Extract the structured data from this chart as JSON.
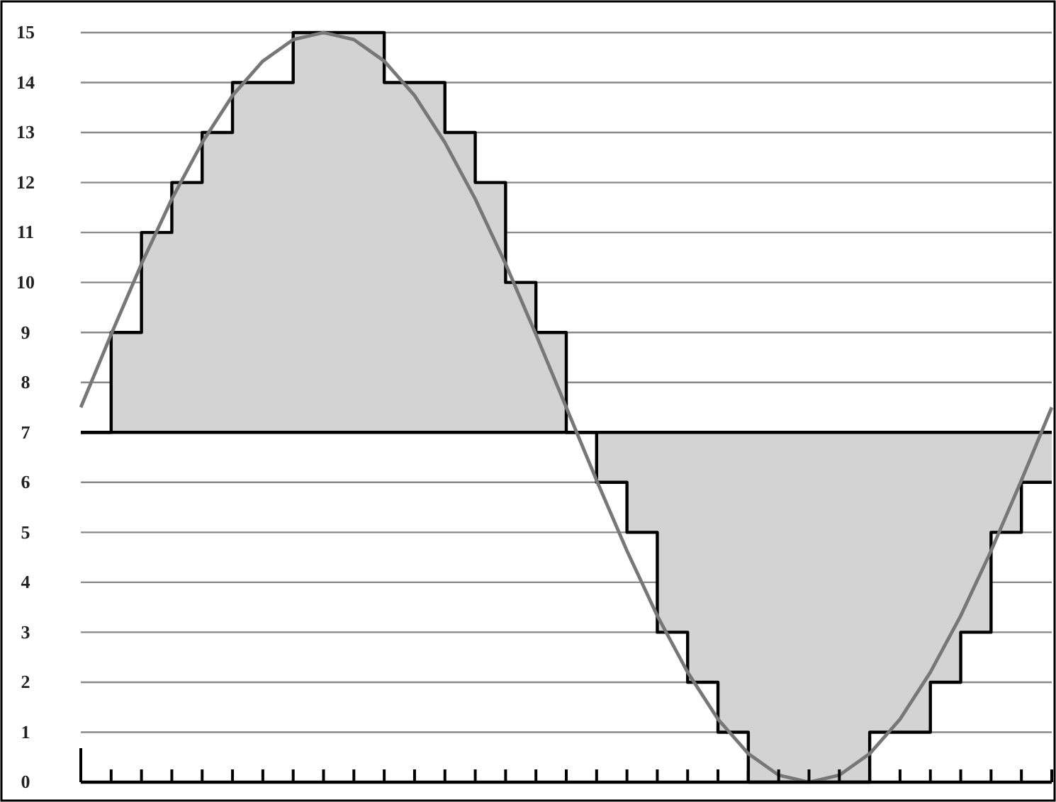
{
  "chart_data": {
    "type": "step",
    "categories": [
      null,
      null,
      null,
      null,
      null,
      null,
      null,
      null,
      null,
      null,
      null,
      null,
      null,
      null,
      null,
      null,
      null,
      null,
      null,
      null,
      null,
      null,
      null,
      null,
      null,
      null,
      null,
      null,
      null,
      null,
      null,
      null,
      null
    ],
    "series": [
      {
        "color": "#000000",
        "values": [
          7,
          9,
          11,
          12,
          13,
          14,
          14,
          15,
          15,
          15,
          14,
          14,
          13,
          12,
          10,
          9,
          7,
          6,
          5,
          3,
          2,
          1,
          0,
          0,
          0,
          0,
          1,
          1,
          2,
          3,
          5,
          6,
          6
        ]
      },
      {
        "type": "line",
        "color": "#777777",
        "values": [
          7.5,
          8.96,
          10.37,
          11.67,
          12.8,
          13.74,
          14.43,
          14.86,
          15,
          14.86,
          14.43,
          13.74,
          12.8,
          11.67,
          10.37,
          8.96,
          7.5,
          6.04,
          4.63,
          3.33,
          2.2,
          1.26,
          0.57,
          0.14,
          0,
          0.14,
          0.57,
          1.26,
          2.2,
          3.33,
          4.63,
          6.04,
          7.5
        ]
      }
    ],
    "ylim": [
      0,
      15
    ],
    "yticks": [
      0,
      1,
      2,
      3,
      4,
      5,
      6,
      7,
      8,
      9,
      10,
      11,
      12,
      13,
      14,
      15
    ],
    "ref_lines": [
      {
        "axis": "y",
        "value": 7,
        "color": "#000000"
      }
    ],
    "grid": "y",
    "marker": "none",
    "line_style": "solid"
  }
}
